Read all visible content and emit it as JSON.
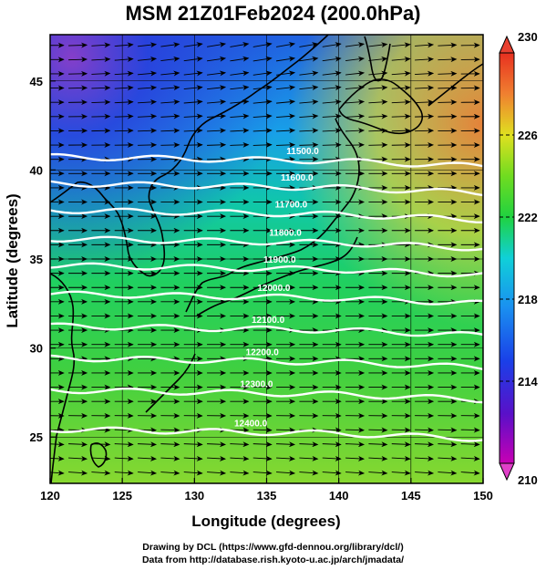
{
  "title": "MSM 21Z01Feb2024 (200.0hPa)",
  "map": {
    "x_axis": {
      "label": "Longitude (degrees)",
      "range": [
        120,
        150
      ],
      "ticks": [
        "120",
        "125",
        "130",
        "135",
        "140",
        "145",
        "150"
      ]
    },
    "y_axis": {
      "label": "Latitude  (degrees)",
      "range": [
        22.4,
        47.6
      ],
      "ticks": [
        "25",
        "30",
        "35",
        "40",
        "45"
      ]
    },
    "height_contours": [
      {
        "label": "11500.0",
        "lat_at_140": 40.5
      },
      {
        "label": "11600.0",
        "lat_at_140": 39.0
      },
      {
        "label": "11700.0",
        "lat_at_140": 37.5
      },
      {
        "label": "11800.0",
        "lat_at_140": 35.9
      },
      {
        "label": "11900.0",
        "lat_at_140": 34.4
      },
      {
        "label": "12000.0",
        "lat_at_140": 32.8
      },
      {
        "label": "12100.0",
        "lat_at_140": 31.0
      },
      {
        "label": "12200.0",
        "lat_at_140": 29.2
      },
      {
        "label": "12300.0",
        "lat_at_140": 27.4
      },
      {
        "label": "12400.0",
        "lat_at_140": 25.2
      }
    ],
    "wind_direction": "west to east"
  },
  "colorbar": {
    "range": [
      210,
      230
    ],
    "tick_labels": [
      "230",
      "226",
      "222",
      "218",
      "214",
      "210"
    ],
    "colors": [
      "#c800b4",
      "#2a10c8",
      "#1a7cf0",
      "#10d0d8",
      "#20d240",
      "#8ae020",
      "#f0dc20",
      "#f08030",
      "#e83020"
    ]
  },
  "credits": {
    "line1": "Drawing by DCL (https://www.gfd-dennou.org/library/dcl/)",
    "line2": "Data from http://database.rish.kyoto-u.ac.jp/arch/jmadata/"
  }
}
